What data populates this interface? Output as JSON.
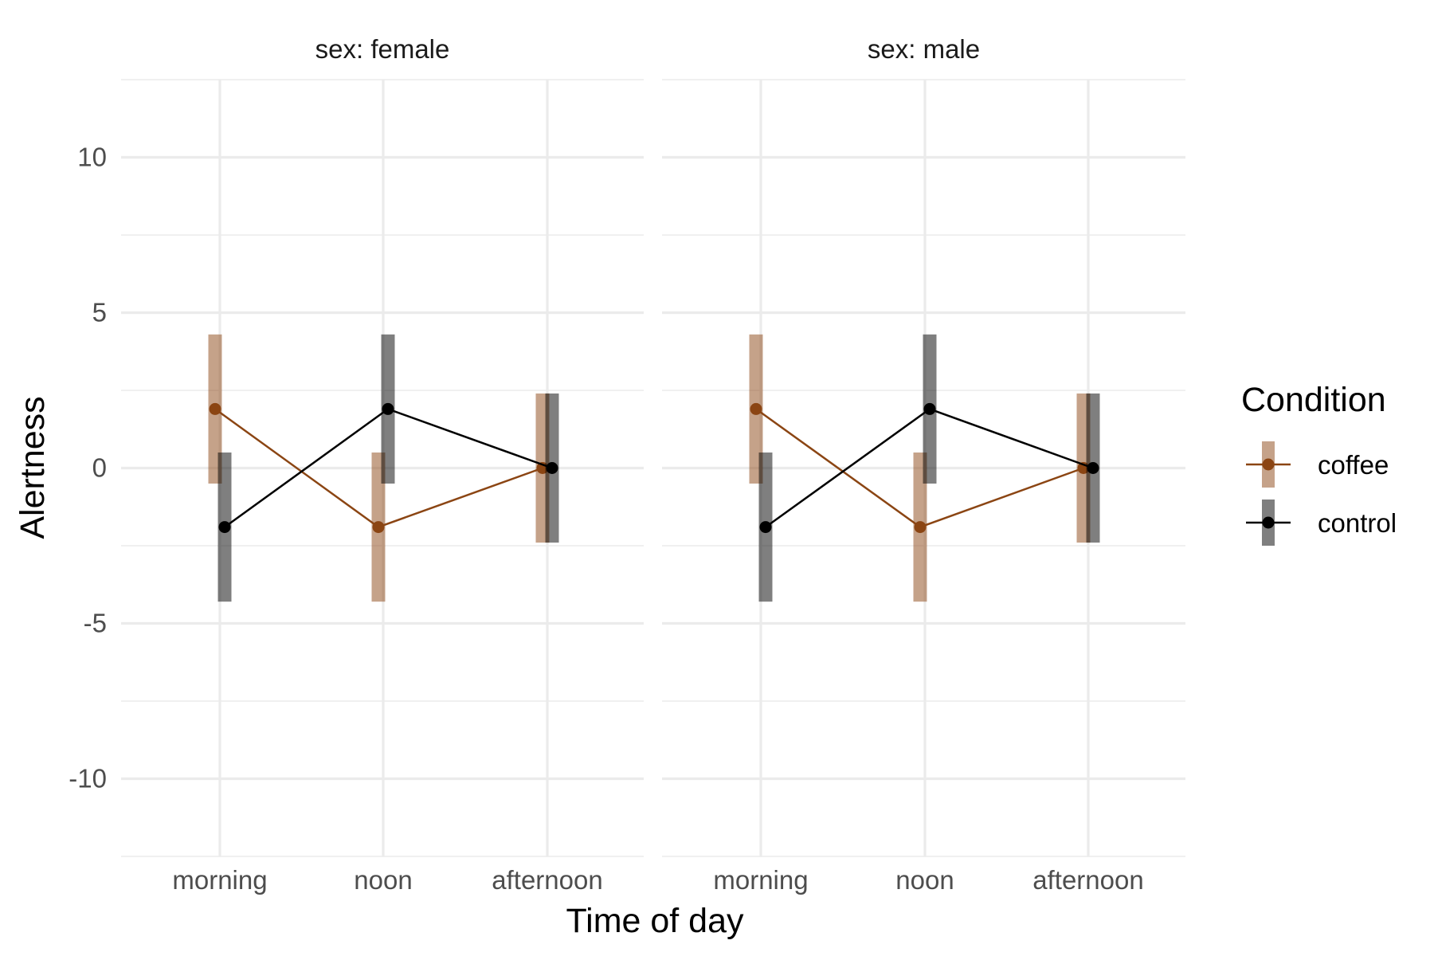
{
  "chart_data": {
    "type": "line",
    "facet_label_prefix": "sex: ",
    "panels": [
      {
        "label": "sex: female",
        "series": [
          {
            "name": "coffee",
            "color": "#8B4513",
            "x": [
              "morning",
              "noon",
              "afternoon"
            ],
            "values": [
              1.9,
              -1.9,
              0.0
            ],
            "lower": [
              -0.5,
              -4.3,
              -2.4
            ],
            "upper": [
              4.3,
              0.5,
              2.4
            ]
          },
          {
            "name": "control",
            "color": "#000000",
            "x": [
              "morning",
              "noon",
              "afternoon"
            ],
            "values": [
              -1.9,
              1.9,
              0.0
            ],
            "lower": [
              -4.3,
              -0.5,
              -2.4
            ],
            "upper": [
              0.5,
              4.3,
              2.4
            ]
          }
        ]
      },
      {
        "label": "sex: male",
        "series": [
          {
            "name": "coffee",
            "color": "#8B4513",
            "x": [
              "morning",
              "noon",
              "afternoon"
            ],
            "values": [
              1.9,
              -1.9,
              0.0
            ],
            "lower": [
              -0.5,
              -4.3,
              -2.4
            ],
            "upper": [
              4.3,
              0.5,
              2.4
            ]
          },
          {
            "name": "control",
            "color": "#000000",
            "x": [
              "morning",
              "noon",
              "afternoon"
            ],
            "values": [
              -1.9,
              1.9,
              0.0
            ],
            "lower": [
              -4.3,
              -0.5,
              -2.4
            ],
            "upper": [
              0.5,
              4.3,
              2.4
            ]
          }
        ]
      }
    ],
    "categories": [
      "morning",
      "noon",
      "afternoon"
    ],
    "xlabel": "Time of day",
    "ylabel": "Alertness",
    "yticks": [
      10,
      5,
      0,
      -5,
      -10
    ],
    "ylim": [
      -12.5,
      12.5
    ],
    "grid": true,
    "legend": {
      "title": "Condition",
      "position": "right",
      "entries": [
        {
          "label": "coffee",
          "color": "#8B4513"
        },
        {
          "label": "control",
          "color": "#000000"
        }
      ]
    }
  }
}
